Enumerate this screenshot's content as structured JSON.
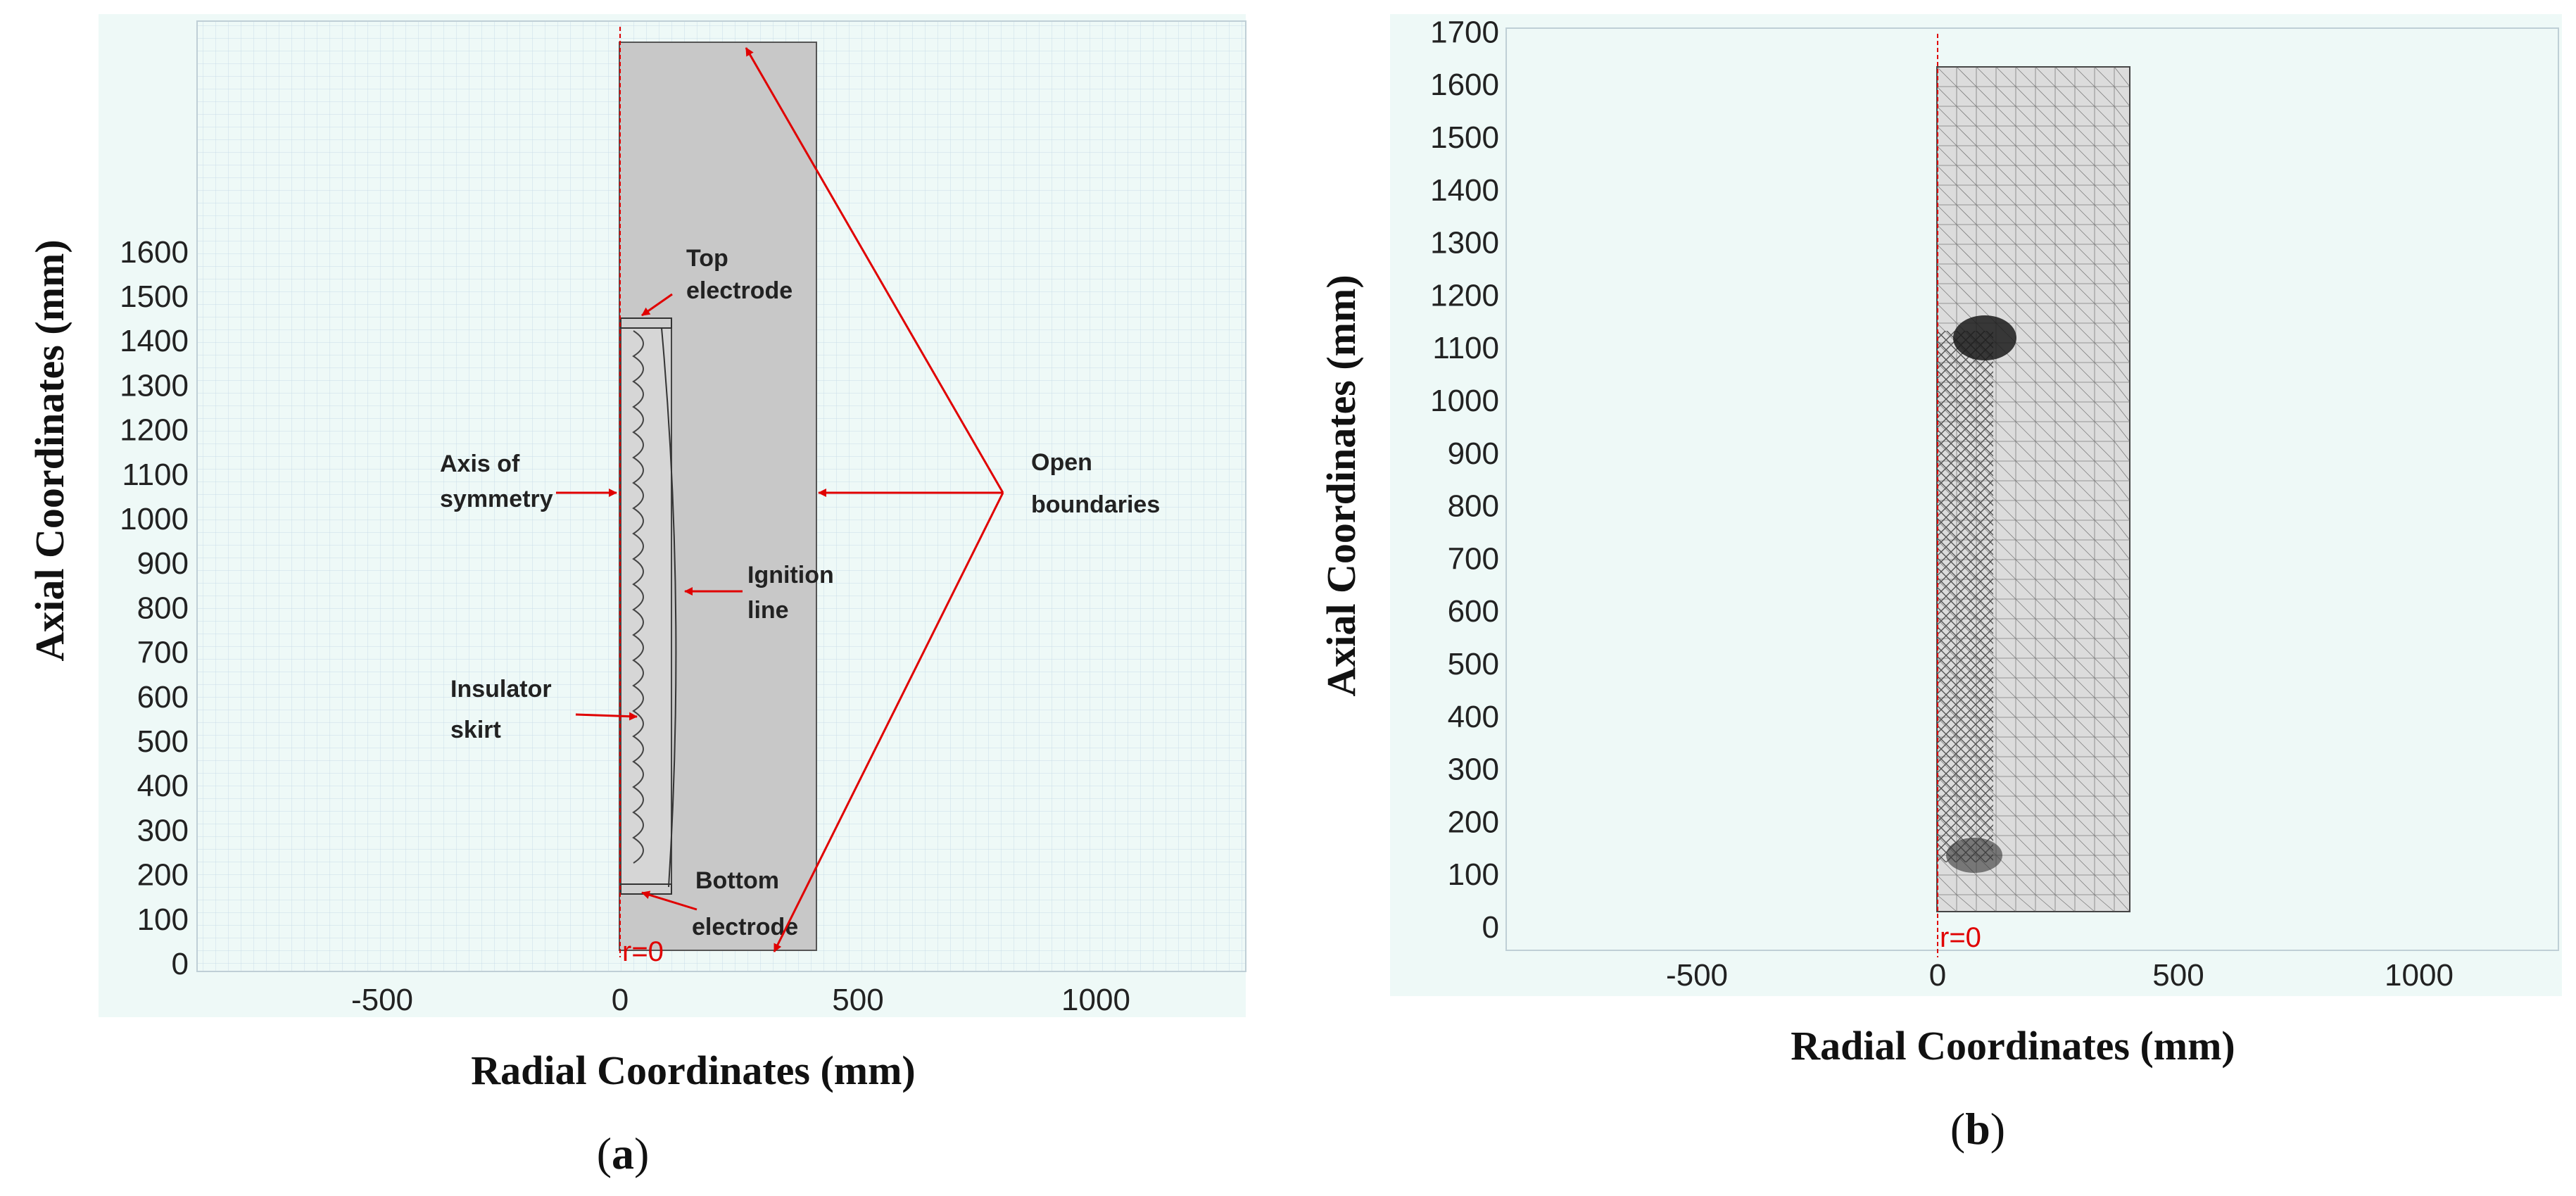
{
  "panels": {
    "a": {
      "label_open": "(",
      "label_letter": "a",
      "label_close": ")",
      "ylabel": "Axial Coordinates (mm)",
      "xlabel": "Radial Coordinates (mm)",
      "y_ticks": [
        "0",
        "100",
        "200",
        "300",
        "400",
        "500",
        "600",
        "700",
        "800",
        "900",
        "1000",
        "1100",
        "1200",
        "1300",
        "1400",
        "1500",
        "1600"
      ],
      "x_ticks": [
        "-500",
        "0",
        "500",
        "1000"
      ],
      "origin_label": "r=0",
      "callouts": {
        "top_electrode": [
          "Top",
          "electrode"
        ],
        "axis_of_symmetry": [
          "Axis of",
          "symmetry"
        ],
        "ignition_line": [
          "Ignition",
          "line"
        ],
        "insulator_skirt": [
          "Insulator",
          "skirt"
        ],
        "bottom_electrode": [
          "Bottom",
          "electrode"
        ],
        "open_boundaries": [
          "Open",
          "boundaries"
        ]
      }
    },
    "b": {
      "label_open": "(",
      "label_letter": "b",
      "label_close": ")",
      "ylabel": "Axial Coordinates (mm)",
      "xlabel": "Radial Coordinates (mm)",
      "y_ticks": [
        "0",
        "100",
        "200",
        "300",
        "400",
        "500",
        "600",
        "700",
        "800",
        "900",
        "1000",
        "1100",
        "1200",
        "1300",
        "1400",
        "1500",
        "1600",
        "1700"
      ],
      "x_ticks": [
        "-500",
        "0",
        "500",
        "1000"
      ],
      "origin_label": "r=0"
    }
  },
  "colors": {
    "plot_bg": "#eef9f7",
    "domain_fill": "#c8c8c8",
    "accent_red": "#e00000",
    "mesh_line": "#555555"
  }
}
